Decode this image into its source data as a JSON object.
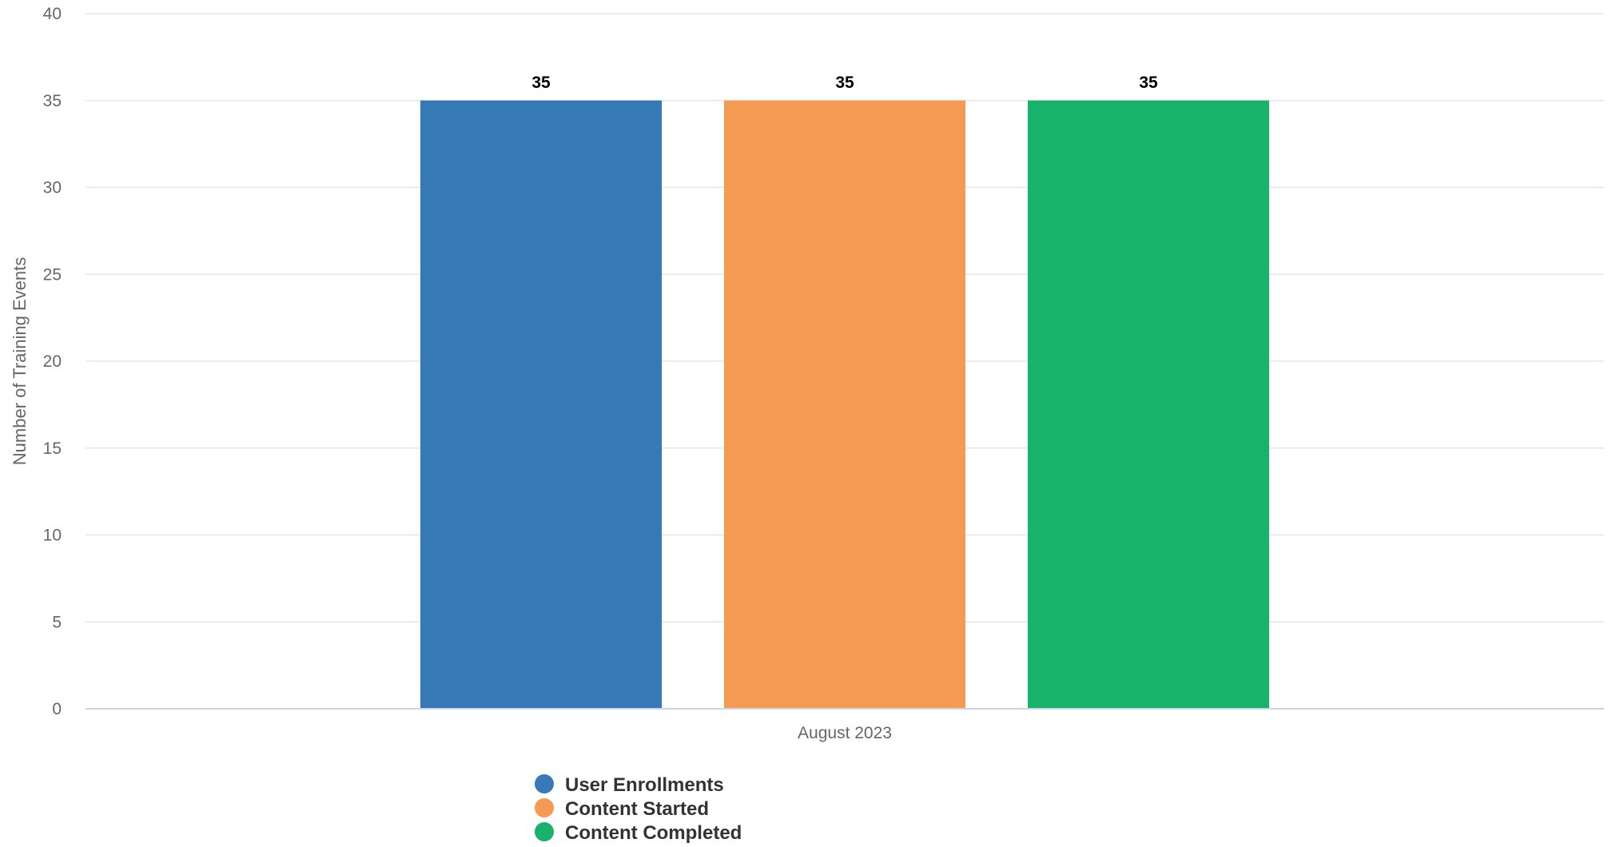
{
  "chart_data": {
    "type": "bar",
    "title": "",
    "xlabel": "",
    "ylabel": "Number of Training Events",
    "categories": [
      "August 2023"
    ],
    "ylim": [
      0,
      40
    ],
    "yticks": [
      0,
      5,
      10,
      15,
      20,
      25,
      30,
      35,
      40
    ],
    "grid": true,
    "legend_position": "bottom",
    "series": [
      {
        "name": "User Enrollments",
        "values": [
          35
        ],
        "color": "#357ab6"
      },
      {
        "name": "Content Started",
        "values": [
          35
        ],
        "color": "#f49a53"
      },
      {
        "name": "Content Completed",
        "values": [
          35
        ],
        "color": "#19b26a"
      }
    ]
  }
}
